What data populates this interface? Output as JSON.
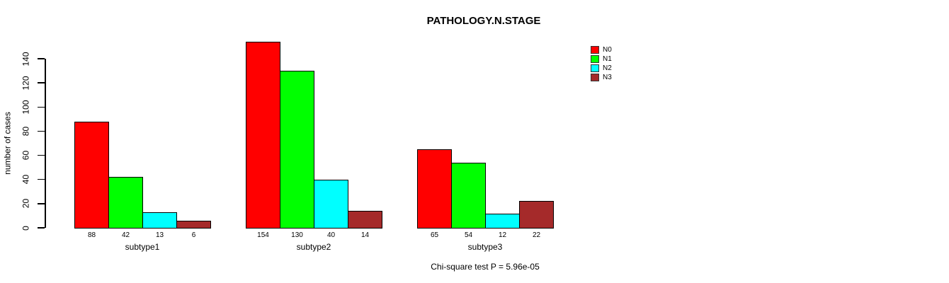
{
  "title": "PATHOLOGY.N.STAGE",
  "y_axis": {
    "label": "number of cases",
    "ticks": [
      0,
      20,
      40,
      60,
      80,
      100,
      120,
      140
    ]
  },
  "footer": "Chi-square test P = 5.96e-05",
  "legend": {
    "items": [
      {
        "label": "N0",
        "color": "#FF0000"
      },
      {
        "label": "N1",
        "color": "#00FF00"
      },
      {
        "label": "N2",
        "color": "#00FFFF"
      },
      {
        "label": "N3",
        "color": "#A52A2A"
      }
    ]
  },
  "chart_data": {
    "type": "bar",
    "title": "PATHOLOGY.N.STAGE",
    "xlabel": "",
    "ylabel": "number of cases",
    "ylim": [
      0,
      140
    ],
    "y_ticks": [
      0,
      20,
      40,
      60,
      80,
      100,
      120,
      140
    ],
    "grid": false,
    "legend_position": "top-right",
    "grouped": true,
    "bar_value_labels": true,
    "categories": [
      "subtype1",
      "subtype2",
      "subtype3"
    ],
    "series": [
      {
        "name": "N0",
        "color": "#FF0000",
        "values": [
          88,
          154,
          65
        ]
      },
      {
        "name": "N1",
        "color": "#00FF00",
        "values": [
          42,
          130,
          54
        ]
      },
      {
        "name": "N2",
        "color": "#00FFFF",
        "values": [
          13,
          40,
          12
        ]
      },
      {
        "name": "N3",
        "color": "#A52A2A",
        "values": [
          6,
          14,
          22
        ]
      }
    ],
    "annotation": "Chi-square test P = 5.96e-05"
  }
}
